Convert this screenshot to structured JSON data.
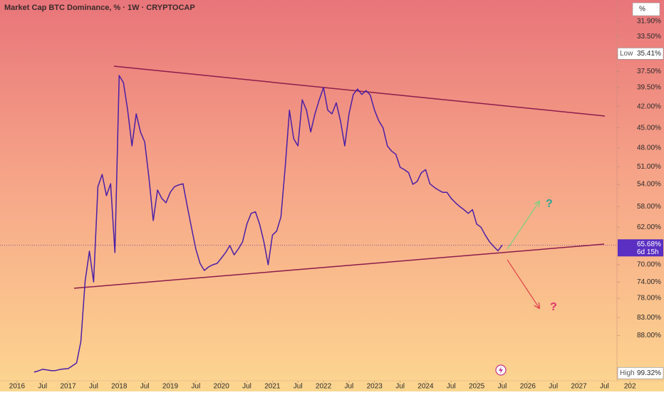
{
  "chart_data": {
    "type": "line",
    "title": "Market Cap BTC Dominance, % · 1W · CRYPTOCAP",
    "axis_unit": "%",
    "log": true,
    "inverted": true,
    "grid": false,
    "color": "#4b1fa6",
    "xlim": [
      "2015-09",
      "2028-09"
    ],
    "ylim": [
      29.78,
      101.8
    ],
    "xticks": [
      {
        "value": "2016-01",
        "label": "2016"
      },
      {
        "value": "2016-07",
        "label": "Jul"
      },
      {
        "value": "2017-01",
        "label": "2017"
      },
      {
        "value": "2017-07",
        "label": "Jul"
      },
      {
        "value": "2018-01",
        "label": "2018"
      },
      {
        "value": "2018-07",
        "label": "Jul"
      },
      {
        "value": "2019-01",
        "label": "2019"
      },
      {
        "value": "2019-07",
        "label": "Jul"
      },
      {
        "value": "2020-01",
        "label": "2020"
      },
      {
        "value": "2020-07",
        "label": "Jul"
      },
      {
        "value": "2021-01",
        "label": "2021"
      },
      {
        "value": "2021-07",
        "label": "Jul"
      },
      {
        "value": "2022-01",
        "label": "2022"
      },
      {
        "value": "2022-07",
        "label": "Jul"
      },
      {
        "value": "2023-01",
        "label": "2023"
      },
      {
        "value": "2023-07",
        "label": "Jul"
      },
      {
        "value": "2024-01",
        "label": "2024"
      },
      {
        "value": "2024-07",
        "label": "Jul"
      },
      {
        "value": "2025-01",
        "label": "2025"
      },
      {
        "value": "2025-07",
        "label": "Jul"
      },
      {
        "value": "2026-01",
        "label": "2026"
      },
      {
        "value": "2026-07",
        "label": "Jul"
      },
      {
        "value": "2027-01",
        "label": "2027"
      },
      {
        "value": "2027-07",
        "label": "Jul"
      },
      {
        "value": "2028-01",
        "label": "202"
      }
    ],
    "yticks": [
      {
        "value": 31.9,
        "label": "31.90%"
      },
      {
        "value": 33.5,
        "label": "33.50%"
      },
      {
        "value": 37.5,
        "label": "37.50%"
      },
      {
        "value": 39.5,
        "label": "39.50%"
      },
      {
        "value": 42,
        "label": "42.00%"
      },
      {
        "value": 45,
        "label": "45.00%"
      },
      {
        "value": 48,
        "label": "48.00%"
      },
      {
        "value": 51,
        "label": "51.00%"
      },
      {
        "value": 54,
        "label": "54.00%"
      },
      {
        "value": 58,
        "label": "58.00%"
      },
      {
        "value": 62,
        "label": "62.00%"
      },
      {
        "value": 70,
        "label": "70.00%"
      },
      {
        "value": 74,
        "label": "74.00%"
      },
      {
        "value": 78,
        "label": "78.00%"
      },
      {
        "value": 83,
        "label": "83.00%"
      },
      {
        "value": 88,
        "label": "88.00%"
      }
    ],
    "low": {
      "label": "Low",
      "value": 35.41,
      "value_label": "35.41%"
    },
    "high": {
      "label": "High",
      "value": 99.32,
      "value_label": "99.32%"
    },
    "last": {
      "value": 65.68,
      "value_label": "65.68%",
      "countdown": "6d 15h"
    },
    "annotations": [
      "?",
      "?"
    ],
    "x": [
      "2016-05",
      "2016-06",
      "2016-07",
      "2016-08",
      "2016-09",
      "2016-10",
      "2016-11",
      "2016-12",
      "2017-01",
      "2017-02",
      "2017-03",
      "2017-04",
      "2017-05",
      "2017-06",
      "2017-07",
      "2017-08",
      "2017-09",
      "2017-10",
      "2017-11",
      "2017-12",
      "2018-01",
      "2018-02",
      "2018-03",
      "2018-04",
      "2018-05",
      "2018-06",
      "2018-07",
      "2018-08",
      "2018-09",
      "2018-10",
      "2018-11",
      "2018-12",
      "2019-01",
      "2019-02",
      "2019-03",
      "2019-04",
      "2019-05",
      "2019-06",
      "2019-07",
      "2019-08",
      "2019-09",
      "2019-10",
      "2019-11",
      "2019-12",
      "2020-01",
      "2020-02",
      "2020-03",
      "2020-04",
      "2020-05",
      "2020-06",
      "2020-07",
      "2020-08",
      "2020-09",
      "2020-10",
      "2020-11",
      "2020-12",
      "2021-01",
      "2021-02",
      "2021-03",
      "2021-04",
      "2021-05",
      "2021-06",
      "2021-07",
      "2021-08",
      "2021-09",
      "2021-10",
      "2021-11",
      "2021-12",
      "2022-01",
      "2022-02",
      "2022-03",
      "2022-04",
      "2022-05",
      "2022-06",
      "2022-07",
      "2022-08",
      "2022-09",
      "2022-10",
      "2022-11",
      "2022-12",
      "2023-01",
      "2023-02",
      "2023-03",
      "2023-04",
      "2023-05",
      "2023-06",
      "2023-07",
      "2023-08",
      "2023-09",
      "2023-10",
      "2023-11",
      "2023-12",
      "2024-01",
      "2024-02",
      "2024-03",
      "2024-04",
      "2024-05",
      "2024-06",
      "2024-07",
      "2024-08",
      "2024-09",
      "2024-10",
      "2024-11",
      "2024-12",
      "2025-01",
      "2025-02",
      "2025-03",
      "2025-04",
      "2025-05",
      "2025-06",
      "2025-07"
    ],
    "values": [
      99.0,
      98.6,
      98.1,
      98.3,
      98.5,
      98.5,
      98.2,
      98.0,
      97.9,
      97.0,
      96.1,
      89.7,
      73.8,
      67.0,
      74.0,
      54.4,
      52.3,
      56.0,
      53.9,
      67.3,
      38.0,
      38.9,
      42.5,
      47.7,
      43.0,
      45.6,
      47.1,
      52.9,
      60.7,
      55.0,
      56.5,
      57.3,
      55.4,
      54.4,
      54.1,
      53.9,
      58.0,
      62.1,
      66.5,
      69.7,
      71.3,
      70.5,
      70.0,
      69.7,
      68.5,
      67.3,
      65.8,
      67.8,
      66.5,
      65.0,
      61.4,
      59.3,
      59.0,
      61.4,
      65.0,
      70.0,
      63.6,
      62.8,
      60.0,
      51.1,
      42.5,
      46.6,
      47.7,
      41.1,
      42.5,
      45.6,
      43.0,
      41.1,
      39.5,
      42.5,
      43.0,
      41.5,
      44.0,
      47.7,
      43.0,
      40.4,
      39.7,
      40.4,
      39.9,
      40.5,
      42.5,
      44.0,
      45.0,
      47.7,
      48.5,
      49.0,
      51.1,
      51.5,
      52.0,
      54.0,
      53.5,
      52.0,
      51.5,
      53.9,
      54.5,
      55.0,
      55.4,
      55.4,
      56.5,
      57.3,
      58.0,
      58.6,
      59.3,
      58.6,
      61.4,
      62.0,
      63.6,
      65.0,
      66.0,
      66.9,
      65.68
    ]
  }
}
